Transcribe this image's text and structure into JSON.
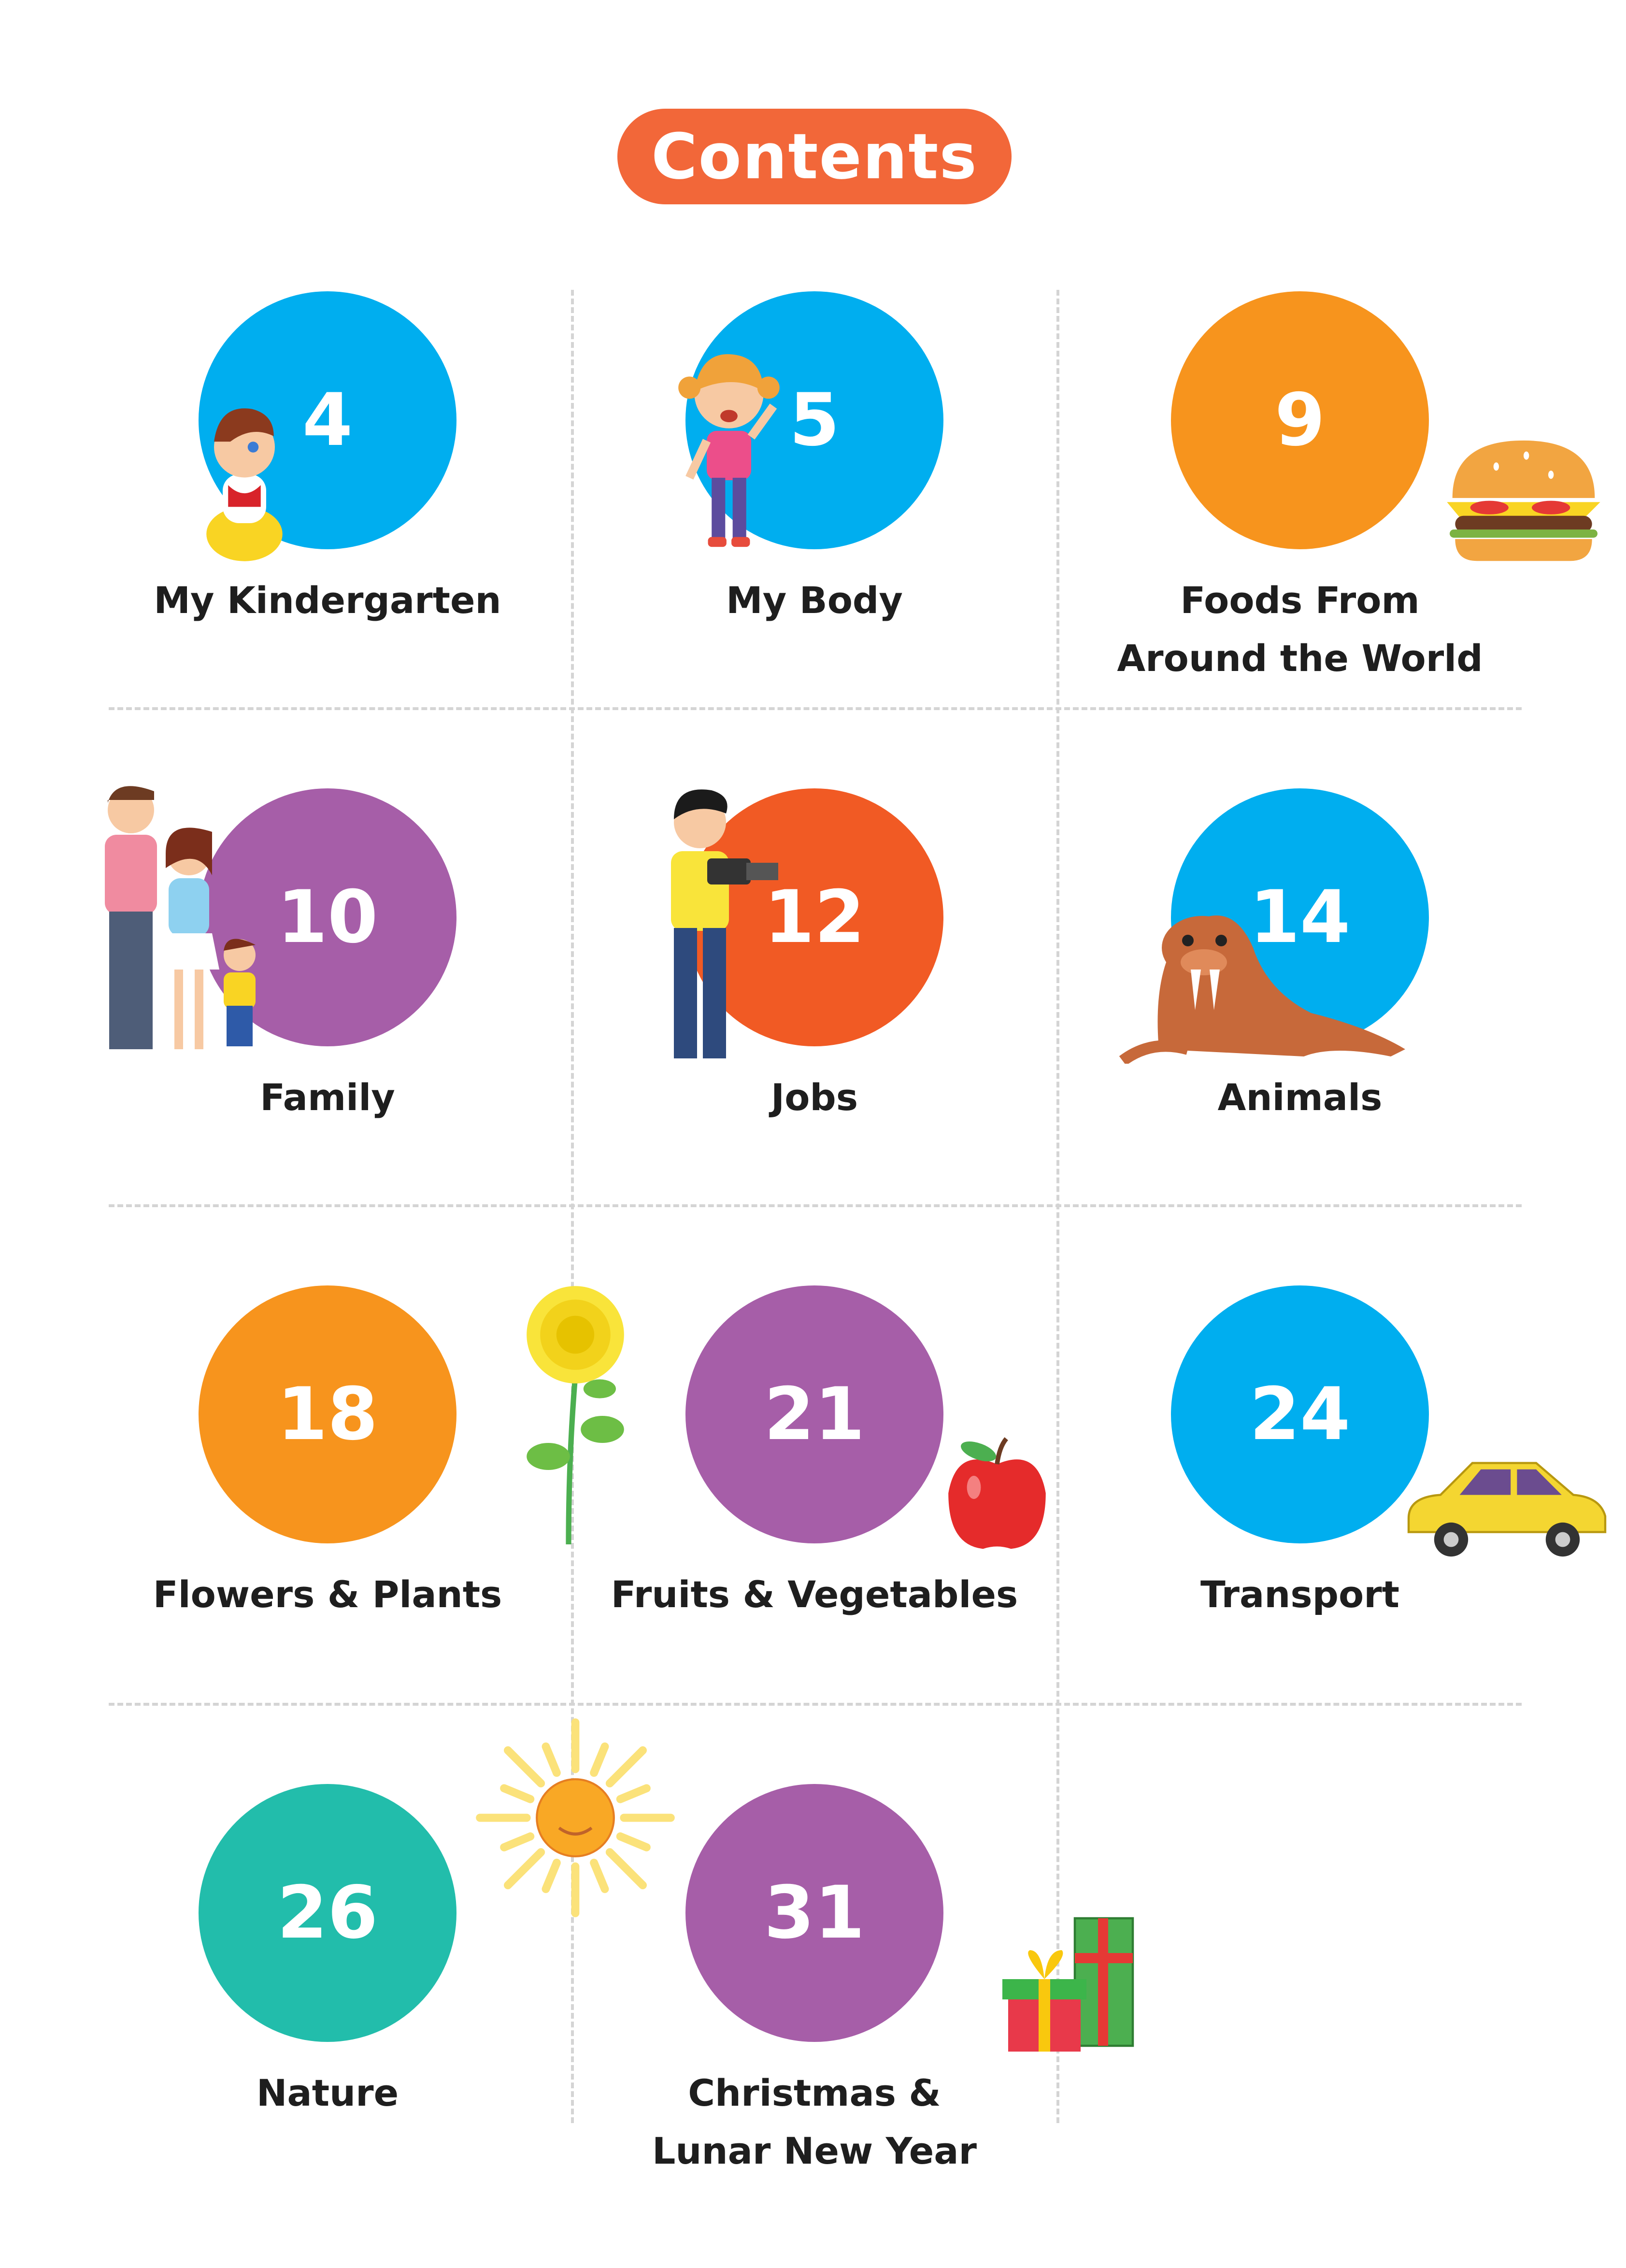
{
  "title": "Contents",
  "colors": {
    "title_pill": "#F26739",
    "blue": "#00AEEF",
    "orange": "#F7941D",
    "purple": "#A65EA8",
    "red": "#F15A24",
    "teal": "#22BDAB"
  },
  "items": [
    {
      "page": "4",
      "label": [
        "My Kindergarten"
      ],
      "color": "#00AEEF",
      "illustration": "boy-icon"
    },
    {
      "page": "5",
      "label": [
        "My Body"
      ],
      "color": "#00AEEF",
      "illustration": "girl-icon"
    },
    {
      "page": "9",
      "label": [
        "Foods From",
        "Around the World"
      ],
      "color": "#F7941D",
      "illustration": "burger-icon"
    },
    {
      "page": "10",
      "label": [
        "Family"
      ],
      "color": "#A65EA8",
      "illustration": "family-icon"
    },
    {
      "page": "12",
      "label": [
        "Jobs"
      ],
      "color": "#F15A24",
      "illustration": "photographer-icon"
    },
    {
      "page": "14",
      "label": [
        "Animals"
      ],
      "color": "#00AEEF",
      "illustration": "walrus-icon"
    },
    {
      "page": "18",
      "label": [
        "Flowers & Plants"
      ],
      "color": "#F7941D",
      "illustration": "flower-icon"
    },
    {
      "page": "21",
      "label": [
        "Fruits & Vegetables"
      ],
      "color": "#A65EA8",
      "illustration": "apple-icon"
    },
    {
      "page": "24",
      "label": [
        "Transport"
      ],
      "color": "#00AEEF",
      "illustration": "car-icon"
    },
    {
      "page": "26",
      "label": [
        "Nature"
      ],
      "color": "#22BDAB",
      "illustration": "sun-icon"
    },
    {
      "page": "31",
      "label": [
        "Christmas &",
        "Lunar New Year"
      ],
      "color": "#A65EA8",
      "illustration": "gift-icon"
    }
  ]
}
